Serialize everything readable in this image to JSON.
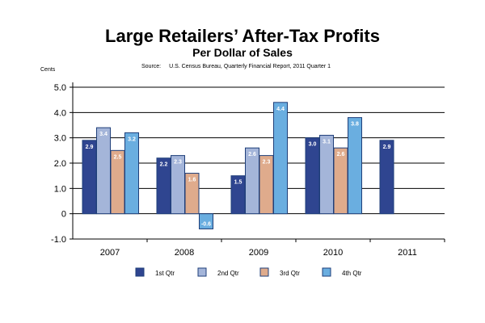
{
  "chart_data": {
    "type": "bar",
    "title": "Large Retailers’ After-Tax Profits",
    "subtitle": "Per Dollar of Sales",
    "ylabel": "Cents",
    "source_label": "Source:",
    "source": "U.S. Census Bureau, Quarterly Financial Report, 2011 Quarter 1",
    "ylim": [
      -1.0,
      5.0
    ],
    "yticks": [
      -1.0,
      0,
      1.0,
      2.0,
      3.0,
      4.0,
      5.0
    ],
    "ytick_labels": [
      "-1.0",
      "0",
      "1.0",
      "2.0",
      "3.0",
      "4.0",
      "5.0"
    ],
    "categories": [
      "2007",
      "2008",
      "2009",
      "2010",
      "2011"
    ],
    "legend_position": "bottom",
    "series": [
      {
        "name": "1st Qtr",
        "color": "#2f4590",
        "values": [
          2.9,
          2.2,
          1.5,
          3.0,
          2.9
        ]
      },
      {
        "name": "2nd Qtr",
        "color": "#a4b5d9",
        "values": [
          3.4,
          2.3,
          2.6,
          3.1,
          null
        ]
      },
      {
        "name": "3rd Qtr",
        "color": "#dfab8c",
        "values": [
          2.5,
          1.6,
          2.3,
          2.6,
          null
        ]
      },
      {
        "name": "4th Qtr",
        "color": "#6aaee0",
        "values": [
          3.2,
          -0.6,
          4.4,
          3.8,
          null
        ]
      }
    ]
  }
}
